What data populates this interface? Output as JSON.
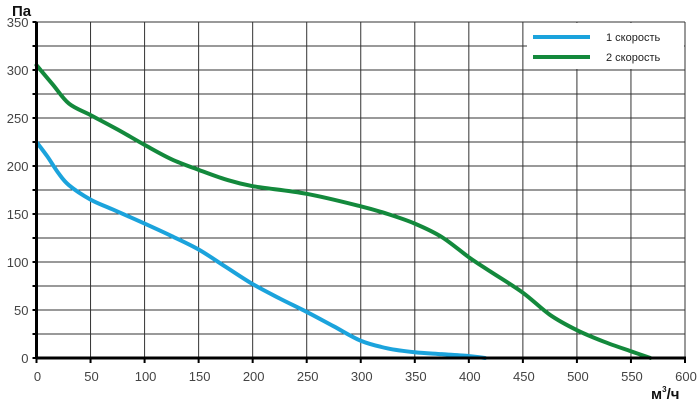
{
  "chart_data": {
    "type": "line",
    "ylabel": "Па",
    "xlabel": "м³/ч",
    "xlabel_base": "м",
    "xlabel_sup": "3",
    "xlabel_rest": "/ч",
    "xlim": [
      0,
      600
    ],
    "ylim": [
      0,
      350
    ],
    "xticks": [
      0,
      50,
      100,
      150,
      200,
      250,
      300,
      350,
      400,
      450,
      500,
      550,
      600
    ],
    "yticks": [
      0,
      50,
      100,
      150,
      200,
      250,
      300,
      350
    ],
    "grid": true,
    "legend_position": "top-right",
    "series": [
      {
        "name": "1 скорость",
        "color": "#1ba3dc",
        "x": [
          0,
          10,
          20,
          30,
          50,
          70,
          100,
          125,
          150,
          175,
          200,
          225,
          250,
          275,
          300,
          325,
          350,
          375,
          400,
          415
        ],
        "y": [
          225,
          210,
          193,
          180,
          165,
          155,
          140,
          127,
          113,
          95,
          77,
          62,
          48,
          33,
          18,
          10,
          6,
          4,
          2,
          0
        ]
      },
      {
        "name": "2 скорость",
        "color": "#13893c",
        "x": [
          0,
          15,
          30,
          50,
          75,
          100,
          125,
          150,
          175,
          200,
          250,
          300,
          325,
          350,
          375,
          400,
          420,
          450,
          475,
          500,
          525,
          550,
          568
        ],
        "y": [
          305,
          285,
          265,
          253,
          238,
          222,
          207,
          196,
          186,
          179,
          171,
          158,
          150,
          140,
          126,
          105,
          90,
          68,
          45,
          29,
          17,
          7,
          0
        ]
      }
    ]
  }
}
